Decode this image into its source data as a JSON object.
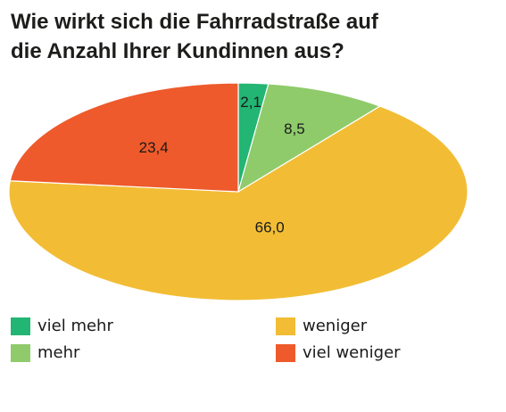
{
  "title_line1": "Wie wirkt sich die Fahrradstraße auf",
  "title_line2": "die Anzahl Ihrer Kundinnen aus?",
  "chart_data": {
    "type": "pie",
    "slices": [
      {
        "name": "viel mehr",
        "value": 2.1,
        "label": "2,1",
        "color": "#23b573"
      },
      {
        "name": "mehr",
        "value": 8.5,
        "label": "8,5",
        "color": "#8fcb6b"
      },
      {
        "name": "weniger",
        "value": 66.0,
        "label": "66,0",
        "color": "#f2bd35"
      },
      {
        "name": "viel weniger",
        "value": 23.4,
        "label": "23,4",
        "color": "#ee5a2b"
      }
    ],
    "legend": [
      "viel mehr",
      "mehr",
      "weniger",
      "viel weniger"
    ],
    "legend_placement": "bottom"
  }
}
